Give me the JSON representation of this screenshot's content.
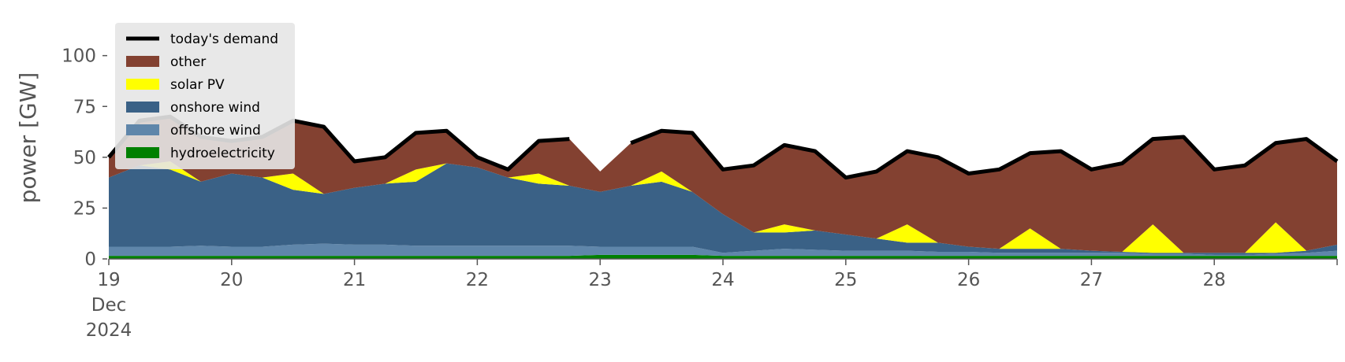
{
  "chart_data": {
    "type": "area",
    "stacked": true,
    "y_label": "power [GW]",
    "x": [
      19,
      19.25,
      19.5,
      19.75,
      20,
      20.25,
      20.5,
      20.75,
      21,
      21.25,
      21.5,
      21.75,
      22,
      22.25,
      22.5,
      22.75,
      23,
      23.25,
      23.5,
      23.75,
      24,
      24.25,
      24.5,
      24.75,
      25,
      25.25,
      25.5,
      25.75,
      26,
      26.25,
      26.5,
      26.75,
      27,
      27.25,
      27.5,
      27.75,
      28,
      28.25,
      28.5,
      28.75,
      29
    ],
    "xlim": [
      19,
      29
    ],
    "xticks": [
      {
        "value": 19,
        "label": "19\nDec\n2024"
      },
      20,
      21,
      22,
      23,
      24,
      25,
      26,
      27,
      28
    ],
    "ylim": [
      0,
      120
    ],
    "yticks": [
      0,
      25,
      50,
      75,
      100
    ],
    "legend": "upper left",
    "line": {
      "name": "today's demand",
      "color": "#000000",
      "values": [
        50,
        68,
        70,
        60,
        58,
        60,
        68,
        65,
        48,
        50,
        62,
        63,
        50,
        44,
        58,
        59,
        null,
        57,
        63,
        62,
        44,
        46,
        56,
        53,
        40,
        43,
        53,
        50,
        42,
        44,
        52,
        53,
        44,
        47,
        59,
        60,
        44,
        46,
        57,
        59,
        48
      ]
    },
    "series": [
      {
        "name": "hydroelectricity",
        "color": "#008000",
        "values": [
          1.5,
          1.5,
          1.5,
          1.5,
          1.5,
          1.5,
          1.5,
          1.5,
          1.5,
          1.5,
          1.5,
          1.5,
          1.5,
          1.5,
          1.5,
          1.5,
          2,
          2,
          2,
          2,
          1.5,
          1.5,
          1.5,
          1.5,
          1.5,
          1.5,
          1.5,
          1.5,
          1.5,
          1.5,
          1.5,
          1.5,
          1.5,
          1.5,
          1.5,
          1.5,
          1.5,
          1.5,
          1.5,
          1.5,
          1.5
        ]
      },
      {
        "name": "offshore wind",
        "color": "#5f86aa",
        "values": [
          4.5,
          4.5,
          4.5,
          5,
          4.5,
          4.5,
          5.5,
          6,
          5.5,
          5.5,
          5,
          5,
          5,
          5,
          5,
          5,
          4,
          4,
          4,
          4,
          1.5,
          2.5,
          3.5,
          3,
          2.5,
          2.5,
          2.5,
          2,
          2,
          1.5,
          1.5,
          1.5,
          1.5,
          1.5,
          1,
          1,
          0.5,
          0.5,
          1,
          1.5,
          2.5
        ]
      },
      {
        "name": "onshore wind",
        "color": "#3a6186",
        "values": [
          34,
          40,
          38,
          31.5,
          36,
          34,
          27,
          24.5,
          28,
          30,
          31.5,
          40.5,
          38.5,
          33.5,
          30.5,
          29.5,
          27,
          30,
          32,
          27,
          19,
          9,
          8,
          9.5,
          8,
          6,
          4,
          4.5,
          2.5,
          2,
          2,
          2,
          1,
          0.5,
          0.5,
          0.5,
          1,
          1,
          0.5,
          1,
          3
        ]
      },
      {
        "name": "solar PV",
        "color": "#ffff00",
        "values": [
          0,
          0,
          4,
          0,
          0,
          0,
          8,
          0,
          0,
          0,
          6,
          0,
          0,
          0,
          5,
          0,
          0,
          0,
          5,
          0,
          0,
          0,
          4,
          0,
          0,
          0,
          9,
          0,
          0,
          0,
          10,
          0,
          0,
          0,
          14,
          0,
          0,
          0,
          15,
          0,
          0
        ]
      },
      {
        "name": "other",
        "color": "#834131",
        "values": [
          10,
          22,
          22,
          22,
          16,
          20,
          26,
          33,
          13,
          13,
          18,
          16,
          5,
          4,
          16,
          23,
          10,
          21,
          20,
          29,
          22,
          33,
          39,
          39,
          28,
          33,
          36,
          42,
          36,
          39,
          37,
          48,
          40,
          43.5,
          42,
          57,
          41,
          43,
          39,
          55,
          41
        ]
      }
    ]
  }
}
